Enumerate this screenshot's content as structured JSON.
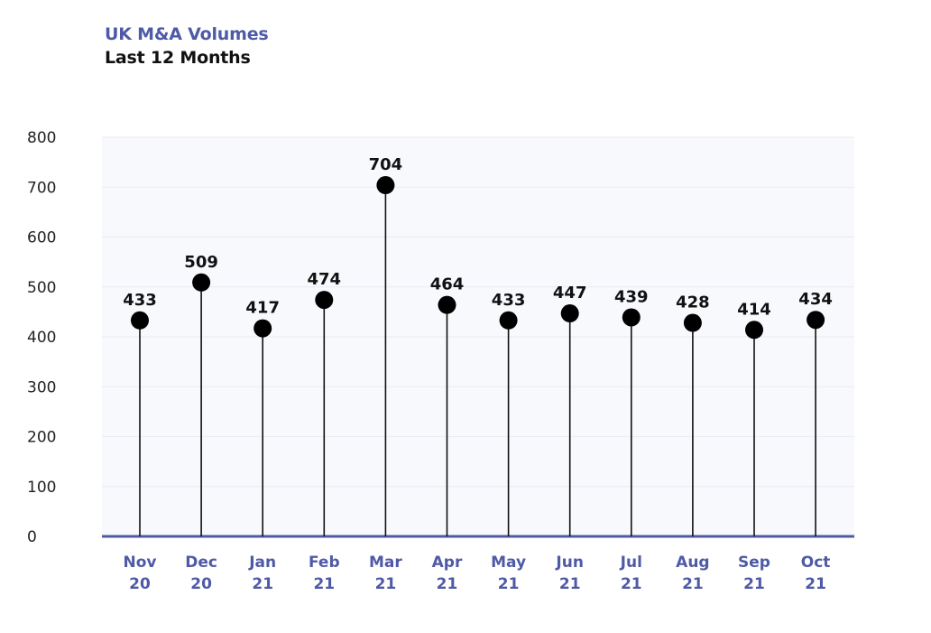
{
  "title": "UK M&A Volumes",
  "subtitle": "Last 12 Months",
  "colors": {
    "title": "#4f5aa6",
    "subtitle": "#111111",
    "axis": "#4f5aa6",
    "category_labels": "#4f5aa6",
    "stem": "#111111",
    "marker": "#000000",
    "plot_background": "#f8f9fd",
    "grid": "#e9ebf3"
  },
  "chart_data": {
    "type": "scatter",
    "style": "lollipop",
    "categories": [
      [
        "Nov",
        "20"
      ],
      [
        "Dec",
        "20"
      ],
      [
        "Jan",
        "21"
      ],
      [
        "Feb",
        "21"
      ],
      [
        "Mar",
        "21"
      ],
      [
        "Apr",
        "21"
      ],
      [
        "May",
        "21"
      ],
      [
        "Jun",
        "21"
      ],
      [
        "Jul",
        "21"
      ],
      [
        "Aug",
        "21"
      ],
      [
        "Sep",
        "21"
      ],
      [
        "Oct",
        "21"
      ]
    ],
    "values": [
      433,
      509,
      417,
      474,
      704,
      464,
      433,
      447,
      439,
      428,
      414,
      434
    ],
    "ylim": [
      0,
      800
    ],
    "yticks": [
      "0",
      "100",
      "200",
      "300",
      "400",
      "500",
      "600",
      "700",
      "800"
    ],
    "grid": true,
    "data_labels": true
  }
}
